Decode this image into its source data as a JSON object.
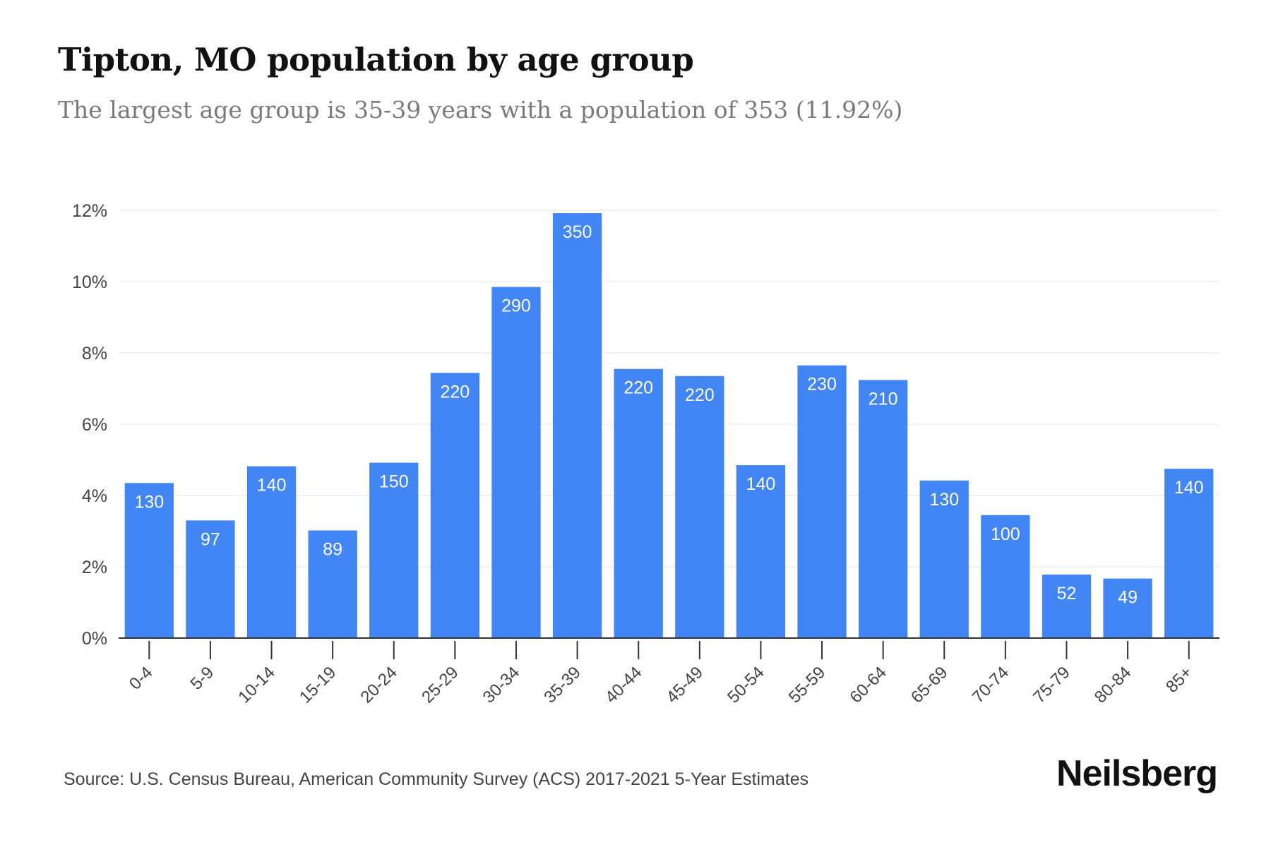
{
  "header": {
    "title": "Tipton, MO population by age group",
    "subtitle": "The largest age group is 35-39 years with a population of 353 (11.92%)"
  },
  "footer": {
    "source": "Source: U.S. Census Bureau, American Community Survey (ACS) 2017-2021 5-Year Estimates",
    "brand": "Neilsberg"
  },
  "chart_data": {
    "type": "bar",
    "categories": [
      "0-4",
      "5-9",
      "10-14",
      "15-19",
      "20-24",
      "25-29",
      "30-34",
      "35-39",
      "40-44",
      "45-49",
      "50-54",
      "55-59",
      "60-64",
      "65-69",
      "70-74",
      "75-79",
      "80-84",
      "85+"
    ],
    "values": [
      4.35,
      3.3,
      4.82,
      3.02,
      4.92,
      7.44,
      9.85,
      11.92,
      7.55,
      7.35,
      4.85,
      7.65,
      7.24,
      4.42,
      3.45,
      1.78,
      1.67,
      4.75
    ],
    "data_labels": [
      "130",
      "97",
      "140",
      "89",
      "150",
      "220",
      "290",
      "350",
      "220",
      "220",
      "140",
      "230",
      "210",
      "130",
      "100",
      "52",
      "49",
      "140"
    ],
    "y_ticks": [
      "0%",
      "2%",
      "4%",
      "6%",
      "8%",
      "10%",
      "12%"
    ],
    "y_tick_values": [
      0,
      2,
      4,
      6,
      8,
      10,
      12
    ],
    "ylim": [
      0,
      12
    ],
    "xlabel": "",
    "ylabel": "",
    "grid": true,
    "bar_color": "#4285f4",
    "grid_color": "#eeeeee",
    "axis_color": "#333333"
  }
}
